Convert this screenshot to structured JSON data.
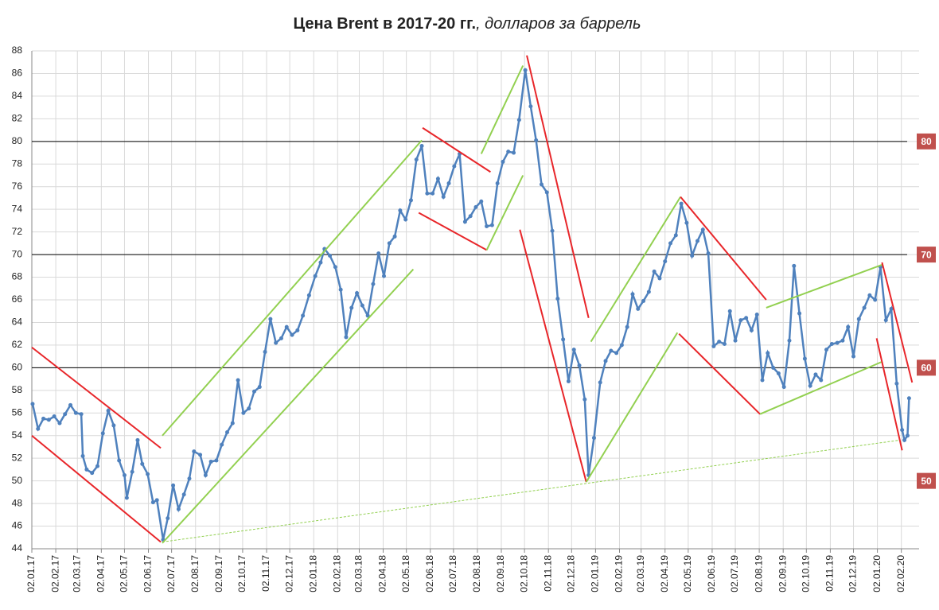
{
  "chart_data": {
    "type": "line",
    "title": "Цена Brent в 2017-20 гг.",
    "title_suffix": ", долларов за баррель",
    "color": "#4f81bd",
    "x": [
      "03.01.17",
      "10.01.17",
      "17.01.17",
      "24.01.17",
      "31.01.17",
      "07.02.17",
      "14.02.17",
      "21.02.17",
      "28.02.17",
      "07.03.17",
      "09.03.17",
      "14.03.17",
      "21.03.17",
      "28.03.17",
      "04.04.17",
      "11.04.17",
      "18.04.17",
      "25.04.17",
      "02.05.17",
      "05.05.17",
      "12.05.17",
      "19.05.17",
      "25.05.17",
      "01.06.17",
      "08.06.17",
      "13.06.17",
      "21.06.17",
      "27.06.17",
      "04.07.17",
      "11.07.17",
      "18.07.17",
      "25.07.17",
      "31.07.17",
      "08.08.17",
      "15.08.17",
      "22.08.17",
      "29.08.17",
      "05.09.17",
      "12.09.17",
      "19.09.17",
      "26.09.17",
      "03.10.17",
      "10.10.17",
      "17.10.17",
      "24.10.17",
      "31.10.17",
      "07.11.17",
      "14.11.17",
      "21.11.17",
      "28.11.17",
      "05.12.17",
      "12.12.17",
      "19.12.17",
      "27.12.17",
      "04.01.18",
      "11.01.18",
      "16.01.18",
      "23.01.18",
      "30.01.18",
      "06.02.18",
      "13.02.18",
      "20.02.18",
      "27.02.18",
      "06.03.18",
      "13.03.18",
      "20.03.18",
      "27.03.18",
      "03.04.18",
      "10.04.18",
      "17.04.18",
      "24.04.18",
      "01.05.18",
      "08.05.18",
      "15.05.18",
      "22.05.18",
      "29.05.18",
      "05.06.18",
      "12.06.18",
      "19.06.18",
      "26.06.18",
      "03.07.18",
      "10.07.18",
      "17.07.18",
      "24.07.18",
      "31.07.18",
      "07.08.18",
      "14.08.18",
      "21.08.18",
      "28.08.18",
      "04.09.18",
      "11.09.18",
      "18.09.18",
      "25.09.18",
      "03.10.18",
      "10.10.18",
      "17.10.18",
      "24.10.18",
      "31.10.18",
      "07.11.18",
      "14.11.18",
      "21.11.18",
      "28.11.18",
      "05.12.18",
      "12.12.18",
      "19.12.18",
      "24.12.18",
      "31.12.18",
      "08.01.19",
      "15.01.19",
      "22.01.19",
      "29.01.19",
      "05.02.19",
      "12.02.19",
      "19.02.19",
      "26.02.19",
      "05.03.19",
      "12.03.19",
      "19.03.19",
      "26.03.19",
      "02.04.19",
      "09.04.19",
      "16.04.19",
      "23.04.19",
      "30.04.19",
      "07.05.19",
      "14.05.19",
      "21.05.19",
      "28.05.19",
      "04.06.19",
      "11.06.19",
      "18.06.19",
      "25.06.19",
      "02.07.19",
      "09.07.19",
      "16.07.19",
      "23.07.19",
      "30.07.19",
      "06.08.19",
      "13.08.19",
      "20.08.19",
      "27.08.19",
      "03.09.19",
      "10.09.19",
      "16.09.19",
      "23.09.19",
      "30.09.19",
      "07.10.19",
      "14.10.19",
      "21.10.19",
      "28.10.19",
      "04.11.19",
      "11.11.19",
      "18.11.19",
      "25.11.19",
      "02.12.19",
      "09.12.19",
      "16.12.19",
      "23.12.19",
      "30.12.19",
      "06.01.20",
      "13.01.20",
      "20.01.20",
      "27.01.20",
      "03.02.20",
      "06.02.20",
      "10.02.20",
      "12.02.20"
    ],
    "values": [
      56.8,
      54.6,
      55.5,
      55.4,
      55.7,
      55.1,
      55.9,
      56.7,
      56.0,
      55.9,
      52.2,
      51.0,
      50.7,
      51.3,
      54.2,
      56.2,
      54.9,
      51.8,
      50.5,
      48.5,
      50.8,
      53.6,
      51.5,
      50.6,
      48.1,
      48.3,
      44.8,
      46.7,
      49.6,
      47.5,
      48.8,
      50.2,
      52.6,
      52.3,
      50.5,
      51.7,
      51.8,
      53.2,
      54.3,
      55.1,
      58.9,
      56.0,
      56.4,
      57.9,
      58.3,
      61.4,
      64.3,
      62.2,
      62.6,
      63.6,
      62.9,
      63.3,
      64.6,
      66.4,
      68.1,
      69.3,
      70.5,
      69.9,
      68.9,
      66.9,
      62.7,
      65.3,
      66.6,
      65.5,
      64.6,
      67.4,
      70.1,
      68.1,
      71.0,
      71.6,
      73.9,
      73.1,
      74.8,
      78.4,
      79.6,
      75.4,
      75.4,
      76.7,
      75.1,
      76.3,
      77.8,
      78.9,
      72.9,
      73.4,
      74.2,
      74.7,
      72.5,
      72.6,
      76.3,
      78.2,
      79.1,
      79.0,
      81.9,
      86.3,
      83.1,
      80.1,
      76.2,
      75.5,
      72.1,
      66.1,
      62.5,
      58.8,
      61.6,
      60.2,
      57.2,
      50.5,
      53.8,
      58.7,
      60.6,
      61.5,
      61.3,
      62.0,
      63.6,
      66.5,
      65.2,
      65.9,
      66.7,
      68.5,
      67.9,
      69.4,
      71.0,
      71.7,
      74.5,
      72.8,
      69.9,
      71.2,
      72.2,
      70.1,
      61.9,
      62.3,
      62.1,
      65.0,
      62.4,
      64.2,
      64.4,
      63.3,
      64.7,
      58.9,
      61.3,
      60.0,
      59.5,
      58.3,
      62.4,
      69.0,
      64.8,
      60.8,
      58.4,
      59.4,
      58.9,
      61.6,
      62.1,
      62.2,
      62.4,
      63.6,
      61.0,
      64.3,
      65.3,
      66.4,
      66.0,
      68.9,
      64.2,
      65.2,
      58.6,
      54.5,
      53.6,
      54.0,
      57.3
    ],
    "xlim": [
      "02.01.17",
      "25.02.20"
    ],
    "xticks": [
      "02.01.17",
      "02.02.17",
      "02.03.17",
      "02.04.17",
      "02.05.17",
      "02.06.17",
      "02.07.17",
      "02.08.17",
      "02.09.17",
      "02.10.17",
      "02.11.17",
      "02.12.17",
      "02.01.18",
      "02.02.18",
      "02.03.18",
      "02.04.18",
      "02.05.18",
      "02.06.18",
      "02.07.18",
      "02.08.18",
      "02.09.18",
      "02.10.18",
      "02.11.18",
      "02.12.18",
      "02.01.19",
      "02.02.19",
      "02.03.19",
      "02.04.19",
      "02.05.19",
      "02.06.19",
      "02.07.19",
      "02.08.19",
      "02.09.19",
      "02.10.19",
      "02.11.19",
      "02.12.19",
      "02.01.20",
      "02.02.20"
    ],
    "ylim": [
      44,
      88
    ],
    "yticks": [
      44,
      46,
      48,
      50,
      52,
      54,
      56,
      58,
      60,
      62,
      64,
      66,
      68,
      70,
      72,
      74,
      76,
      78,
      80,
      82,
      84,
      86,
      88
    ],
    "grid": true,
    "reference_lines": [
      80,
      70,
      60
    ],
    "reference_labels": [
      80,
      70,
      60,
      50
    ],
    "reference_label_color": "#c0504d",
    "trend_lines": [
      {
        "color": "#e8262a",
        "x": [
          "02.01.17",
          "18.06.17"
        ],
        "y": [
          61.8,
          52.9
        ]
      },
      {
        "color": "#e8262a",
        "x": [
          "02.01.17",
          "18.06.17"
        ],
        "y": [
          54.0,
          44.6
        ]
      },
      {
        "color": "#92d050",
        "x": [
          "20.06.17",
          "22.05.18"
        ],
        "y": [
          54.0,
          80.1
        ]
      },
      {
        "color": "#92d050",
        "x": [
          "20.06.17",
          "11.05.18"
        ],
        "y": [
          44.5,
          68.7
        ]
      },
      {
        "color": "#92d050",
        "x": [
          "20.06.17",
          "31.01.20"
        ],
        "y": [
          44.6,
          53.6
        ],
        "dashed": true
      },
      {
        "color": "#e8262a",
        "x": [
          "23.05.18",
          "19.08.18"
        ],
        "y": [
          81.2,
          77.3
        ]
      },
      {
        "color": "#e8262a",
        "x": [
          "18.05.18",
          "14.08.18"
        ],
        "y": [
          73.7,
          70.4
        ]
      },
      {
        "color": "#92d050",
        "x": [
          "07.08.18",
          "30.09.18"
        ],
        "y": [
          78.9,
          86.7
        ]
      },
      {
        "color": "#92d050",
        "x": [
          "14.08.18",
          "30.09.18"
        ],
        "y": [
          70.4,
          77.0
        ]
      },
      {
        "color": "#e8262a",
        "x": [
          "05.10.18",
          "24.12.18"
        ],
        "y": [
          87.6,
          64.4
        ]
      },
      {
        "color": "#e8262a",
        "x": [
          "26.09.18",
          "21.12.18"
        ],
        "y": [
          72.2,
          49.9
        ]
      },
      {
        "color": "#92d050",
        "x": [
          "27.12.18",
          "22.04.19"
        ],
        "y": [
          62.3,
          75.1
        ]
      },
      {
        "color": "#92d050",
        "x": [
          "21.12.18",
          "18.04.19"
        ],
        "y": [
          49.9,
          63.1
        ]
      },
      {
        "color": "#e8262a",
        "x": [
          "22.04.19",
          "11.08.19"
        ],
        "y": [
          75.1,
          66.0
        ]
      },
      {
        "color": "#e8262a",
        "x": [
          "20.04.19",
          "03.08.19"
        ],
        "y": [
          63.0,
          55.9
        ]
      },
      {
        "color": "#92d050",
        "x": [
          "11.08.19",
          "08.01.20"
        ],
        "y": [
          65.3,
          69.1
        ]
      },
      {
        "color": "#92d050",
        "x": [
          "03.08.19",
          "07.01.20"
        ],
        "y": [
          55.9,
          60.5
        ]
      },
      {
        "color": "#e8262a",
        "x": [
          "08.01.20",
          "16.02.20"
        ],
        "y": [
          69.3,
          58.7
        ]
      },
      {
        "color": "#e8262a",
        "x": [
          "01.01.20",
          "03.02.20"
        ],
        "y": [
          62.6,
          52.7
        ]
      }
    ]
  }
}
